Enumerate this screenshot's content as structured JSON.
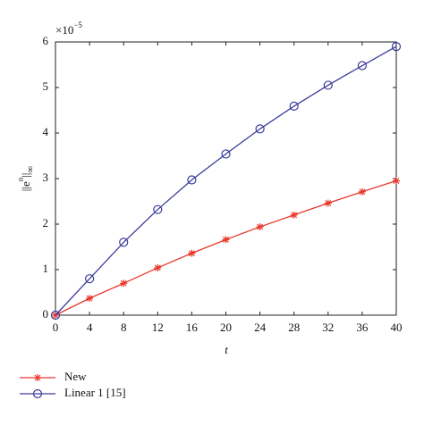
{
  "chart_data": {
    "type": "line",
    "xlabel": "t",
    "ylabel": [
      "||e",
      "n",
      "||",
      "∞"
    ],
    "y_multiplier": [
      "×10",
      "−5"
    ],
    "x": [
      0,
      4,
      8,
      12,
      16,
      20,
      24,
      28,
      32,
      36,
      40
    ],
    "series": [
      {
        "name": "New",
        "color": "#e8372c",
        "marker": "star",
        "values": [
          0,
          0.37,
          0.7,
          1.04,
          1.36,
          1.66,
          1.94,
          2.2,
          2.46,
          2.71,
          2.95
        ]
      },
      {
        "name": "Linear 1 [15]",
        "color": "#3c3c9c",
        "marker": "circle",
        "values": [
          0,
          0.8,
          1.6,
          2.32,
          2.97,
          3.54,
          4.09,
          4.59,
          5.05,
          5.48,
          5.9
        ]
      }
    ],
    "xlim": [
      0,
      40
    ],
    "xticks": [
      0,
      4,
      8,
      12,
      16,
      20,
      24,
      28,
      32,
      36,
      40
    ],
    "ylim": [
      0,
      6
    ],
    "yticks": [
      0,
      1,
      2,
      3,
      4,
      5,
      6
    ],
    "grid": false,
    "legend": "bottom-left"
  }
}
